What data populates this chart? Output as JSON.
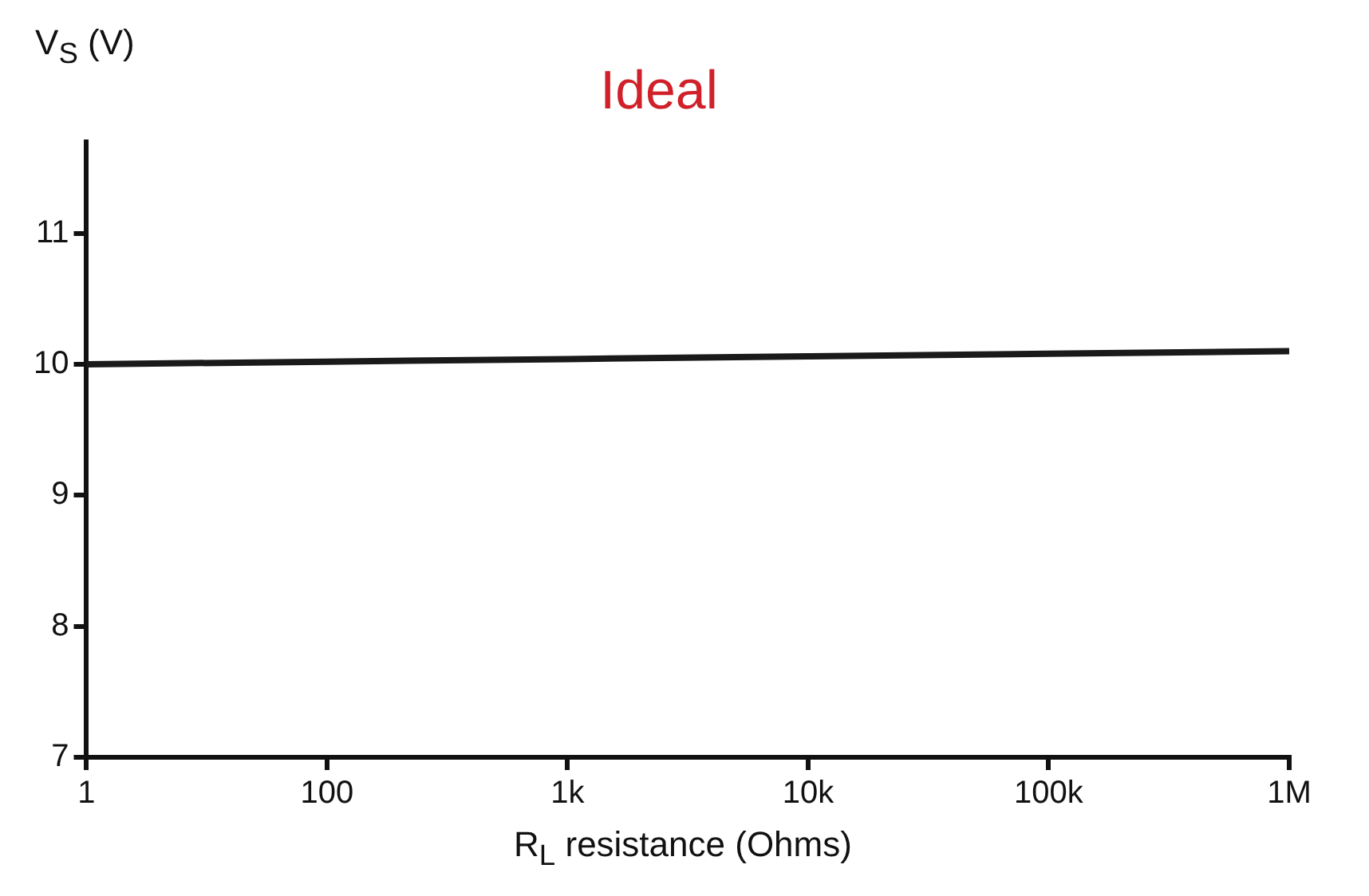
{
  "chart_data": {
    "type": "line",
    "title": "Ideal",
    "xlabel": "R$_{L}$ resistance (Ohms)",
    "ylabel": "V$_{S}$ (V)",
    "categories": [
      "1",
      "100",
      "1k",
      "10k",
      "100k",
      "1M"
    ],
    "series": [
      {
        "color": "#1a1a1a",
        "values": [
          10.0,
          10.02,
          10.04,
          10.06,
          10.08,
          10.1
        ]
      }
    ],
    "ylim": [
      7,
      11.7
    ],
    "yticks": [
      7,
      8,
      9,
      10,
      11
    ],
    "marker": "none",
    "legend": false
  }
}
